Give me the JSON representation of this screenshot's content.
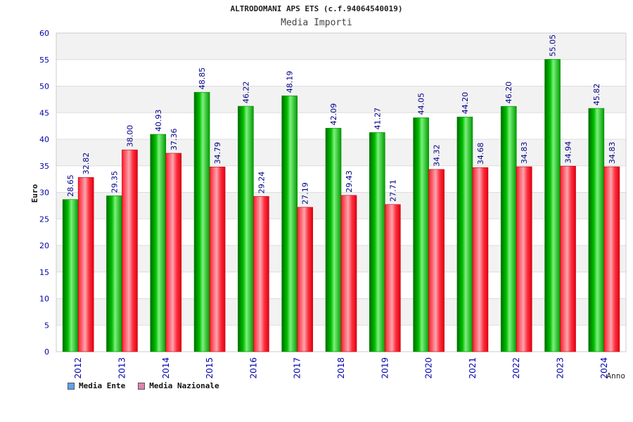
{
  "chart_data": {
    "type": "bar",
    "title": "ALTRODOMANI APS ETS (c.f.94064540019)",
    "subtitle": "Media Importi",
    "xlabel": "Anno",
    "ylabel": "Euro",
    "ylim": [
      0,
      60
    ],
    "yticks": [
      0,
      5,
      10,
      15,
      20,
      25,
      30,
      35,
      40,
      45,
      50,
      55,
      60
    ],
    "grid": true,
    "legend_position": "bottom-left",
    "categories": [
      "2012",
      "2013",
      "2014",
      "2015",
      "2016",
      "2017",
      "2018",
      "2019",
      "2020",
      "2021",
      "2022",
      "2023",
      "2024"
    ],
    "series": [
      {
        "name": "Media Ente",
        "values": [
          28.65,
          29.35,
          40.93,
          48.85,
          46.22,
          48.19,
          42.09,
          41.27,
          44.05,
          44.2,
          46.2,
          55.05,
          45.82
        ],
        "labels": [
          "28.65",
          "29.35",
          "40.93",
          "48.85",
          "46.22",
          "48.19",
          "42.09",
          "41.27",
          "44.05",
          "44.20",
          "46.20",
          "55.05",
          "45.82"
        ],
        "bar_color": "#10c010",
        "legend_color": "#5ba3f0"
      },
      {
        "name": "Media Nazionale",
        "values": [
          32.82,
          38.0,
          37.36,
          34.79,
          29.24,
          27.19,
          29.43,
          27.71,
          34.32,
          34.68,
          34.83,
          34.94,
          34.83
        ],
        "labels": [
          "32.82",
          "38.00",
          "37.36",
          "34.79",
          "29.24",
          "27.19",
          "29.43",
          "27.71",
          "34.32",
          "34.68",
          "34.83",
          "34.94",
          "34.83"
        ],
        "bar_color": "#f01020",
        "legend_color": "#e083b0"
      }
    ],
    "colors": {
      "axis_text": "#0000aa",
      "grid_band": "#f2f2f2",
      "grid_line": "#dddddd",
      "label_text": "#000088"
    }
  }
}
